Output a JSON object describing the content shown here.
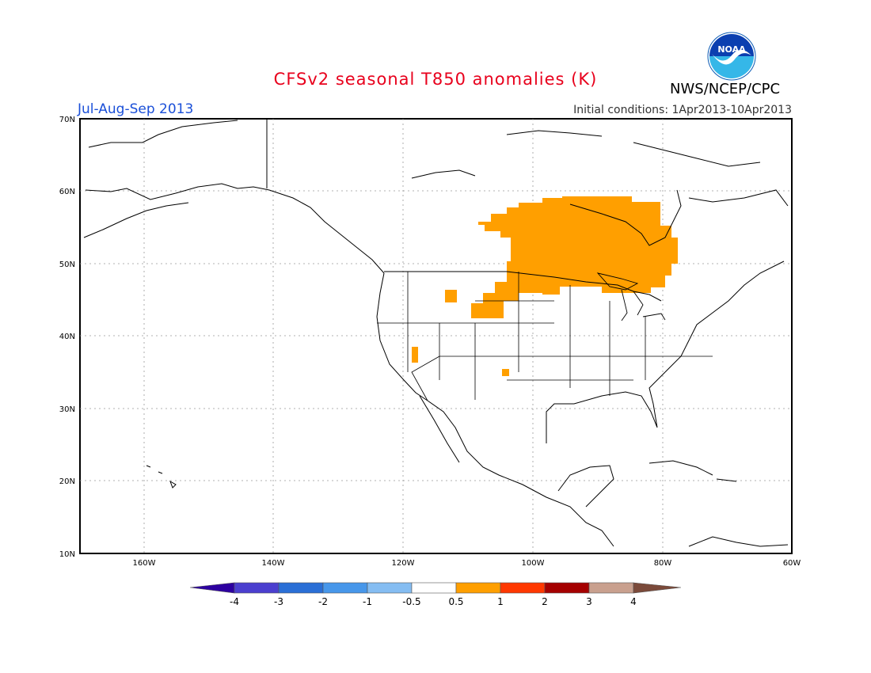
{
  "title": "CFSv2 seasonal T850 anomalies (K)",
  "season": "Jul-Aug-Sep 2013",
  "initial_conditions": "Initial conditions: 1Apr2013-10Apr2013",
  "agency": "NWS/NCEP/CPC",
  "logo_text": "NOAA",
  "map": {
    "lat_labels": [
      "70N",
      "60N",
      "50N",
      "40N",
      "30N",
      "20N",
      "10N"
    ],
    "lon_labels": [
      "160W",
      "140W",
      "120W",
      "100W",
      "80W",
      "60W"
    ]
  },
  "colorbar": {
    "labels": [
      "-4",
      "-3",
      "-2",
      "-1",
      "-0.5",
      "0.5",
      "1",
      "2",
      "3",
      "4"
    ],
    "colors": [
      "#2d00a0",
      "#4b3fcf",
      "#2a6fd6",
      "#4797ea",
      "#85bdf2",
      "#ffffff",
      "#ff9f00",
      "#ff3800",
      "#a50000",
      "#c9a08e",
      "#7b4a3a"
    ]
  },
  "anomaly_color": "#ff9f00"
}
